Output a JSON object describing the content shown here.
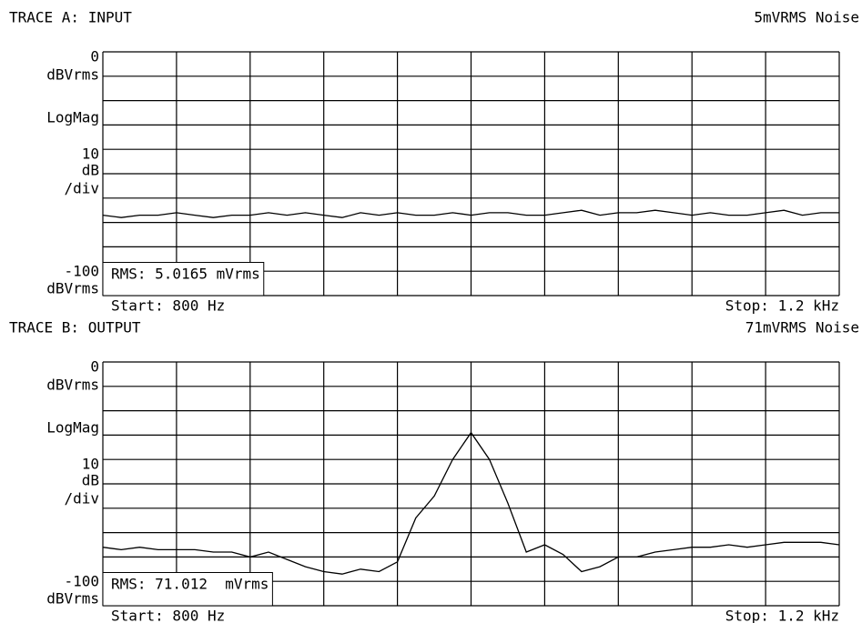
{
  "chart_data": [
    {
      "type": "line",
      "title": "TRACE A: INPUT",
      "subtitle": "5mVRMS Noise",
      "format_label": "LogMag",
      "rms_label": "RMS: 5.0165 mVrms",
      "y_unit": "dBVrms",
      "scale": {
        "per_div": 10,
        "unit": "dB",
        "suffix": "/div"
      },
      "xlim": [
        800,
        1200
      ],
      "xticks": [
        {
          "value": 800,
          "label": "Start: 800 Hz"
        },
        {
          "value": 1200,
          "label": "Stop: 1.2 kHz"
        }
      ],
      "ylim": [
        -100,
        0
      ],
      "yticks": [
        0,
        -100
      ],
      "grid": true,
      "x": [
        800,
        810,
        820,
        830,
        840,
        850,
        860,
        870,
        880,
        890,
        900,
        910,
        920,
        930,
        940,
        950,
        960,
        970,
        980,
        990,
        1000,
        1010,
        1020,
        1030,
        1040,
        1050,
        1060,
        1070,
        1080,
        1090,
        1100,
        1110,
        1120,
        1130,
        1140,
        1150,
        1160,
        1170,
        1180,
        1190,
        1200
      ],
      "series": [
        {
          "color": "#000000",
          "values": [
            -67,
            -68,
            -67,
            -67,
            -66,
            -67,
            -68,
            -67,
            -67,
            -66,
            -67,
            -66,
            -67,
            -68,
            -66,
            -67,
            -66,
            -67,
            -67,
            -66,
            -67,
            -66,
            -66,
            -67,
            -67,
            -66,
            -65,
            -67,
            -66,
            -66,
            -65,
            -66,
            -67,
            -66,
            -67,
            -67,
            -66,
            -65,
            -67,
            -66,
            -66
          ]
        }
      ]
    },
    {
      "type": "line",
      "title": "TRACE B: OUTPUT",
      "subtitle": "71mVRMS Noise",
      "format_label": "LogMag",
      "rms_label": "RMS: 71.012  mVrms",
      "y_unit": "dBVrms",
      "scale": {
        "per_div": 10,
        "unit": "dB",
        "suffix": "/div"
      },
      "xlim": [
        800,
        1200
      ],
      "xticks": [
        {
          "value": 800,
          "label": "Start: 800 Hz"
        },
        {
          "value": 1200,
          "label": "Stop: 1.2 kHz"
        }
      ],
      "ylim": [
        -100,
        0
      ],
      "yticks": [
        0,
        -100
      ],
      "grid": true,
      "x": [
        800,
        810,
        820,
        830,
        840,
        850,
        860,
        870,
        880,
        890,
        900,
        910,
        920,
        930,
        940,
        950,
        960,
        970,
        980,
        990,
        1000,
        1010,
        1020,
        1030,
        1040,
        1050,
        1060,
        1070,
        1080,
        1090,
        1100,
        1110,
        1120,
        1130,
        1140,
        1150,
        1160,
        1170,
        1180,
        1190,
        1200
      ],
      "series": [
        {
          "color": "#000000",
          "values": [
            -76,
            -77,
            -76,
            -77,
            -77,
            -77,
            -78,
            -78,
            -80,
            -78,
            -81,
            -84,
            -86,
            -87,
            -85,
            -86,
            -82,
            -64,
            -55,
            -40,
            -29,
            -40,
            -58,
            -78,
            -75,
            -79,
            -86,
            -84,
            -80,
            -80,
            -78,
            -77,
            -76,
            -76,
            -75,
            -76,
            -75,
            -74,
            -74,
            -74,
            -75
          ]
        }
      ]
    }
  ]
}
